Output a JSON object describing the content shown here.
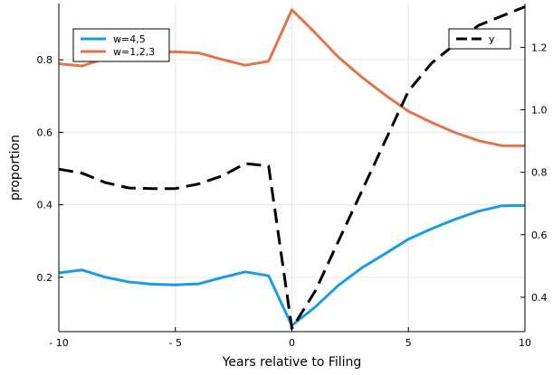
{
  "chart_data": {
    "type": "line",
    "xlabel": "Years relative to Filing",
    "ylabel": "proportion",
    "xlim": [
      -10,
      10
    ],
    "ylim_left": [
      0.05,
      0.955
    ],
    "ylim_right": [
      0.29,
      1.34
    ],
    "x_ticks": [
      -10,
      -5,
      0,
      5,
      10
    ],
    "x_tick_labels": [
      "- 10",
      "- 5",
      "0",
      "5",
      "10"
    ],
    "y_left_ticks": [
      0.2,
      0.4,
      0.6,
      0.8
    ],
    "y_left_tick_labels": [
      "0.2",
      "0.4",
      "0.6",
      "0.8"
    ],
    "y_right_ticks": [
      0.4,
      0.6,
      0.8,
      1.0,
      1.2
    ],
    "y_right_tick_labels": [
      "0.4",
      "0.6",
      "0.8",
      "1.0",
      "1.2"
    ],
    "grid": true,
    "x": [
      -10,
      -9,
      -8,
      -7,
      -6,
      -5,
      -4,
      -3,
      -2,
      -1,
      0,
      1,
      2,
      3,
      4,
      5,
      6,
      7,
      8,
      9,
      10
    ],
    "series": [
      {
        "name": "w=4,5",
        "axis": "left",
        "color": "#1a9be6",
        "dash": "solid",
        "values": [
          0.212,
          0.22,
          0.2,
          0.187,
          0.181,
          0.179,
          0.182,
          0.199,
          0.215,
          0.204,
          0.067,
          0.118,
          0.178,
          0.226,
          0.265,
          0.305,
          0.334,
          0.36,
          0.382,
          0.397,
          0.398
        ]
      },
      {
        "name": "w=1,2,3",
        "axis": "left",
        "color": "#e3744a",
        "dash": "solid",
        "values": [
          0.789,
          0.783,
          0.804,
          0.81,
          0.82,
          0.822,
          0.819,
          0.801,
          0.785,
          0.796,
          0.938,
          0.874,
          0.807,
          0.752,
          0.703,
          0.658,
          0.627,
          0.599,
          0.577,
          0.563,
          0.563
        ]
      },
      {
        "name": "y",
        "axis": "right",
        "color": "#000000",
        "dash": "dashed",
        "values": [
          0.81,
          0.797,
          0.767,
          0.75,
          0.748,
          0.748,
          0.763,
          0.788,
          0.828,
          0.82,
          0.3,
          0.42,
          0.58,
          0.74,
          0.9,
          1.06,
          1.15,
          1.21,
          1.27,
          1.3,
          1.33
        ]
      }
    ],
    "legends": [
      {
        "placement": "top-left",
        "entries": [
          "w=4,5",
          "w=1,2,3"
        ]
      },
      {
        "placement": "top-right",
        "entries": [
          "y"
        ]
      }
    ]
  }
}
